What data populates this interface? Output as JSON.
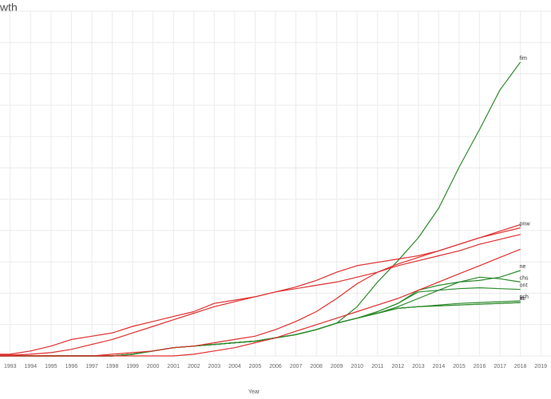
{
  "chart_data": {
    "type": "line",
    "title": "wth",
    "xlabel": "Year",
    "ylabel": "",
    "x_ticks": [
      1993,
      1994,
      1995,
      1996,
      1997,
      1998,
      1999,
      2000,
      2001,
      2002,
      2003,
      2004,
      2005,
      2006,
      2007,
      2008,
      2009,
      2010,
      2011,
      2012,
      2013,
      2014,
      2015,
      2016,
      2017,
      2018,
      2019
    ],
    "xlim": [
      1992.5,
      2019.5
    ],
    "ylim": [
      0,
      21
    ],
    "grid": true,
    "legend": "none",
    "colors": {
      "green": "#2e8b2e",
      "red": "#e03030",
      "grid": "#ebebeb"
    },
    "series": [
      {
        "name": "fim",
        "color": "green",
        "x": [
          1992,
          1993,
          1994,
          1995,
          1996,
          1997,
          1998,
          1999,
          2000,
          2001,
          2002,
          2003,
          2004,
          2005,
          2006,
          2007,
          2008,
          2009,
          2010,
          2011,
          2012,
          2013,
          2014,
          2015,
          2016,
          2017,
          2018
        ],
        "y": [
          0,
          0,
          0,
          0,
          0,
          0,
          0,
          0.1,
          0.3,
          0.5,
          0.6,
          0.7,
          0.8,
          0.9,
          1.1,
          1.3,
          1.6,
          2.0,
          3.0,
          4.5,
          5.8,
          7.2,
          9.0,
          11.5,
          13.8,
          16.2,
          17.9
        ]
      },
      {
        "name": "ne",
        "color": "green",
        "x": [
          1992,
          1993,
          1994,
          1995,
          1996,
          1997,
          1998,
          1999,
          2000,
          2001,
          2002,
          2003,
          2004,
          2005,
          2006,
          2007,
          2008,
          2009,
          2010,
          2011,
          2012,
          2013,
          2014,
          2015,
          2016,
          2017,
          2018
        ],
        "y": [
          0,
          0,
          0,
          0,
          0,
          0,
          0,
          0.1,
          0.3,
          0.5,
          0.6,
          0.7,
          0.8,
          0.9,
          1.1,
          1.3,
          1.6,
          2.0,
          2.3,
          2.7,
          3.2,
          4.0,
          4.3,
          4.5,
          4.6,
          4.8,
          5.2
        ]
      },
      {
        "name": "ont",
        "color": "green",
        "x": [
          1992,
          1993,
          1994,
          1995,
          1996,
          1997,
          1998,
          1999,
          2000,
          2001,
          2002,
          2003,
          2004,
          2005,
          2006,
          2007,
          2008,
          2009,
          2010,
          2011,
          2012,
          2013,
          2014,
          2015,
          2016,
          2017,
          2018
        ],
        "y": [
          0,
          0,
          0,
          0,
          0,
          0,
          0,
          0.1,
          0.3,
          0.5,
          0.6,
          0.7,
          0.8,
          0.9,
          1.1,
          1.3,
          1.6,
          2.0,
          2.3,
          2.7,
          3.2,
          3.9,
          4.0,
          4.1,
          4.15,
          4.1,
          4.05
        ]
      },
      {
        "name": "chs",
        "color": "green",
        "x": [
          1992,
          1993,
          1994,
          1995,
          1996,
          1997,
          1998,
          1999,
          2000,
          2001,
          2002,
          2003,
          2004,
          2005,
          2006,
          2007,
          2008,
          2009,
          2010,
          2011,
          2012,
          2013,
          2014,
          2015,
          2016,
          2017,
          2018
        ],
        "y": [
          0,
          0,
          0,
          0,
          0,
          0,
          0,
          0.1,
          0.3,
          0.5,
          0.6,
          0.7,
          0.8,
          0.9,
          1.1,
          1.3,
          1.6,
          2.0,
          2.3,
          2.6,
          3.0,
          3.5,
          4.0,
          4.5,
          4.8,
          4.7,
          4.5
        ]
      },
      {
        "name": "pch",
        "color": "green",
        "x": [
          1992,
          1993,
          1994,
          1995,
          1996,
          1997,
          1998,
          1999,
          2000,
          2001,
          2002,
          2003,
          2004,
          2005,
          2006,
          2007,
          2008,
          2009,
          2010,
          2011,
          2012,
          2013,
          2014,
          2015,
          2016,
          2017,
          2018
        ],
        "y": [
          0,
          0,
          0,
          0,
          0,
          0,
          0,
          0.1,
          0.3,
          0.5,
          0.6,
          0.7,
          0.8,
          0.9,
          1.1,
          1.3,
          1.6,
          2.0,
          2.3,
          2.6,
          2.9,
          3.0,
          3.1,
          3.2,
          3.25,
          3.3,
          3.35
        ]
      },
      {
        "name": "nc",
        "color": "green",
        "x": [
          1992,
          1993,
          1994,
          1995,
          1996,
          1997,
          1998,
          1999,
          2000,
          2001,
          2002,
          2003,
          2004,
          2005,
          2006,
          2007,
          2008,
          2009,
          2010,
          2011,
          2012,
          2013,
          2014,
          2015,
          2016,
          2017,
          2018
        ],
        "y": [
          0,
          0,
          0,
          0,
          0,
          0,
          0,
          0.1,
          0.3,
          0.5,
          0.6,
          0.7,
          0.8,
          0.9,
          1.1,
          1.3,
          1.6,
          2.0,
          2.3,
          2.6,
          2.9,
          3.0,
          3.05,
          3.1,
          3.15,
          3.2,
          3.25
        ]
      },
      {
        "name": "in",
        "color": "green",
        "x": [
          1992,
          1993,
          1994,
          1995,
          1996,
          1997,
          1998,
          1999,
          2000,
          2001,
          2002,
          2003,
          2004,
          2005,
          2006,
          2007,
          2008,
          2009,
          2010,
          2011,
          2012,
          2013,
          2014,
          2015,
          2016,
          2017,
          2018
        ],
        "y": [
          0,
          0,
          0,
          0,
          0,
          0,
          0,
          0.1,
          0.3,
          0.5,
          0.6,
          0.7,
          0.8,
          0.9,
          1.1,
          1.3,
          1.6,
          2.0,
          2.3,
          2.6,
          2.9,
          3.0,
          3.05,
          3.1,
          3.15,
          3.2,
          3.25
        ]
      },
      {
        "name": "pnw",
        "color": "red",
        "x": [
          1992,
          1993,
          1994,
          1995,
          1996,
          1997,
          1998,
          1999,
          2000,
          2001,
          2002,
          2003,
          2004,
          2005,
          2006,
          2007,
          2008,
          2009,
          2010,
          2011,
          2012,
          2013,
          2014,
          2015,
          2016,
          2017,
          2018
        ],
        "y": [
          0.1,
          0.1,
          0.3,
          0.6,
          1.0,
          1.2,
          1.4,
          1.8,
          2.1,
          2.4,
          2.7,
          3.2,
          3.4,
          3.6,
          3.9,
          4.2,
          4.6,
          5.1,
          5.5,
          5.7,
          5.9,
          6.1,
          6.4,
          6.8,
          7.2,
          7.5,
          7.8
        ]
      },
      {
        "name": "",
        "color": "red",
        "x": [
          1992,
          1993,
          1994,
          1995,
          1996,
          1997,
          1998,
          1999,
          2000,
          2001,
          2002,
          2003,
          2004,
          2005,
          2006,
          2007,
          2008,
          2009,
          2010,
          2011,
          2012,
          2013,
          2014,
          2015,
          2016,
          2017,
          2018
        ],
        "y": [
          0.05,
          0.05,
          0.1,
          0.2,
          0.4,
          0.7,
          1.0,
          1.4,
          1.8,
          2.2,
          2.6,
          3.0,
          3.3,
          3.6,
          3.9,
          4.1,
          4.3,
          4.5,
          4.8,
          5.1,
          5.5,
          5.8,
          6.1,
          6.4,
          6.8,
          7.1,
          7.4
        ]
      },
      {
        "name": "",
        "color": "red",
        "x": [
          1992,
          1993,
          1994,
          1995,
          1996,
          1997,
          1998,
          1999,
          2000,
          2001,
          2002,
          2003,
          2004,
          2005,
          2006,
          2007,
          2008,
          2009,
          2010,
          2011,
          2012,
          2013,
          2014,
          2015,
          2016,
          2017,
          2018
        ],
        "y": [
          0,
          0,
          0,
          0,
          0,
          0,
          0.1,
          0.2,
          0.3,
          0.5,
          0.6,
          0.8,
          1.0,
          1.2,
          1.6,
          2.1,
          2.7,
          3.5,
          4.4,
          5.1,
          5.6,
          6.0,
          6.4,
          6.8,
          7.2,
          7.6,
          8.0
        ]
      },
      {
        "name": "",
        "color": "red",
        "x": [
          1992,
          1993,
          1994,
          1995,
          1996,
          1997,
          1998,
          1999,
          2000,
          2001,
          2002,
          2003,
          2004,
          2005,
          2006,
          2007,
          2008,
          2009,
          2010,
          2011,
          2012,
          2013,
          2014,
          2015,
          2016,
          2017,
          2018
        ],
        "y": [
          0,
          0,
          0,
          0,
          0,
          0,
          0,
          0,
          0,
          0,
          0.1,
          0.3,
          0.5,
          0.8,
          1.1,
          1.5,
          1.9,
          2.3,
          2.7,
          3.1,
          3.5,
          4.0,
          4.5,
          5.0,
          5.5,
          6.0,
          6.5
        ]
      }
    ]
  }
}
